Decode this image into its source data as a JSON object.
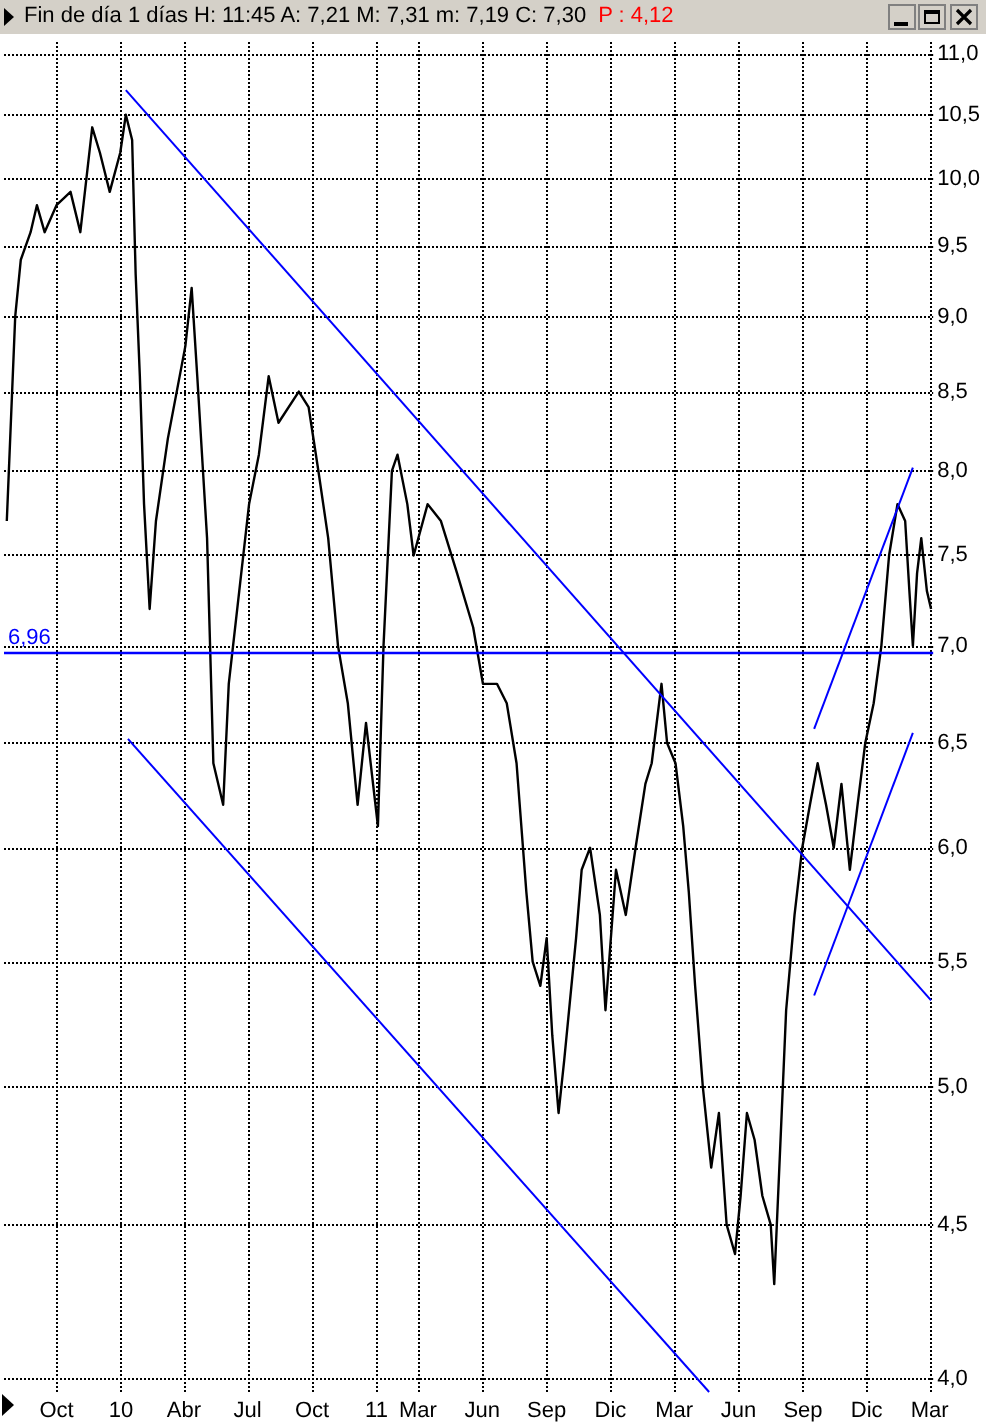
{
  "chart_data": {
    "type": "line",
    "title": "Fin de día 1 días  H: 11:45  A: 7,21  M: 7,31  m: 7,19  C: 7,30",
    "annotations": [
      "P : 4,12"
    ],
    "x": [
      "2009-07-22",
      "2009-08-03",
      "2009-08-11",
      "2009-08-25",
      "2009-09-03",
      "2009-09-14",
      "2009-10-01",
      "2009-10-21",
      "2009-11-04",
      "2009-11-21",
      "2009-12-02",
      "2009-12-16",
      "2009-12-31",
      "2010-01-08",
      "2010-01-17",
      "2010-01-22",
      "2010-01-28",
      "2010-02-03",
      "2010-02-11",
      "2010-02-20",
      "2010-03-09",
      "2010-04-03",
      "2010-04-12",
      "2010-04-20",
      "2010-05-04",
      "2010-05-13",
      "2010-05-27",
      "2010-06-04",
      "2010-06-19",
      "2010-07-03",
      "2010-07-17",
      "2010-07-31",
      "2010-08-14",
      "2010-09-12",
      "2010-09-26",
      "2010-10-10",
      "2010-10-24",
      "2010-11-07",
      "2010-11-21",
      "2010-12-05",
      "2010-12-17",
      "2011-01-03",
      "2011-01-11",
      "2011-01-23",
      "2011-01-31",
      "2011-02-14",
      "2011-02-23",
      "2011-03-15",
      "2011-04-03",
      "2011-04-26",
      "2011-05-19",
      "2011-06-02",
      "2011-06-22",
      "2011-07-06",
      "2011-07-20",
      "2011-08-03",
      "2011-08-12",
      "2011-08-23",
      "2011-09-01",
      "2011-09-09",
      "2011-09-18",
      "2011-09-26",
      "2011-10-13",
      "2011-10-21",
      "2011-11-02",
      "2011-11-16",
      "2011-11-24",
      "2011-12-09",
      "2011-12-23",
      "2012-01-06",
      "2012-01-20",
      "2012-01-29",
      "2012-02-12",
      "2012-02-20",
      "2012-03-03",
      "2012-03-14",
      "2012-03-22",
      "2012-03-31",
      "2012-04-11",
      "2012-04-23",
      "2012-05-04",
      "2012-05-15",
      "2012-05-27",
      "2012-06-04",
      "2012-06-13",
      "2012-06-24",
      "2012-07-05",
      "2012-07-17",
      "2012-07-22",
      "2012-07-31",
      "2012-08-08",
      "2012-08-20",
      "2012-08-31",
      "2012-09-11",
      "2012-09-22",
      "2012-10-04",
      "2012-10-15",
      "2012-10-26",
      "2012-11-07",
      "2012-11-18",
      "2012-11-29",
      "2012-12-11",
      "2012-12-22",
      "2013-01-02",
      "2013-01-14",
      "2013-01-25",
      "2013-01-31",
      "2013-02-05",
      "2013-02-11",
      "2013-02-17",
      "2013-02-25",
      "2013-03-03"
    ],
    "series": [
      {
        "color": "#000000",
        "values": [
          7.7,
          9.0,
          9.4,
          9.6,
          9.8,
          9.6,
          9.8,
          9.9,
          9.6,
          10.4,
          10.2,
          9.9,
          10.2,
          10.5,
          10.3,
          9.3,
          8.6,
          7.8,
          7.2,
          7.7,
          8.2,
          8.8,
          9.2,
          8.6,
          7.6,
          6.4,
          6.2,
          6.8,
          7.3,
          7.8,
          8.1,
          8.6,
          8.3,
          8.5,
          8.4,
          8.0,
          7.6,
          7.0,
          6.7,
          6.2,
          6.6,
          6.1,
          7.0,
          8.0,
          8.1,
          7.8,
          7.5,
          7.8,
          7.7,
          7.4,
          7.1,
          6.8,
          6.8,
          6.7,
          6.4,
          5.8,
          5.5,
          5.4,
          5.6,
          5.2,
          4.9,
          5.1,
          5.6,
          5.9,
          6.0,
          5.7,
          5.3,
          5.9,
          5.7,
          6.0,
          6.3,
          6.4,
          6.8,
          6.5,
          6.4,
          6.1,
          5.8,
          5.4,
          5.0,
          4.7,
          4.9,
          4.5,
          4.4,
          4.6,
          4.9,
          4.8,
          4.6,
          4.5,
          4.3,
          4.8,
          5.3,
          5.7,
          6.0,
          6.2,
          6.4,
          6.2,
          6.0,
          6.3,
          5.9,
          6.2,
          6.5,
          6.7,
          7.0,
          7.5,
          7.8,
          7.7,
          7.3,
          7.0,
          7.4,
          7.6,
          7.3,
          7.2
        ]
      },
      {
        "color": "#0000ff",
        "x": [
          "2010-01-08",
          "2013-03-03"
        ],
        "values": [
          10.7,
          5.34
        ]
      },
      {
        "color": "#0000ff",
        "x": [
          "2010-01-11",
          "2012-04-20"
        ],
        "values": [
          6.52,
          3.96
        ]
      },
      {
        "color": "#0000ff",
        "x": [
          "2012-09-17",
          "2013-02-05"
        ],
        "values": [
          6.57,
          8.02
        ]
      },
      {
        "color": "#0000ff",
        "x": [
          "2012-09-17",
          "2013-02-05"
        ],
        "values": [
          5.36,
          6.55
        ]
      }
    ],
    "ref_lines": [
      {
        "axis": "y",
        "value": 6.96,
        "label": "6,96",
        "color": "#0000ff"
      }
    ],
    "log": "y",
    "ylim": [
      3.96,
      11.1
    ],
    "yticks": [
      {
        "value": 4,
        "label": "4,0"
      },
      {
        "value": 4.5,
        "label": "4,5"
      },
      {
        "value": 5,
        "label": "5,0"
      },
      {
        "value": 5.5,
        "label": "5,5"
      },
      {
        "value": 6,
        "label": "6,0"
      },
      {
        "value": 6.5,
        "label": "6,5"
      },
      {
        "value": 7,
        "label": "7,0"
      },
      {
        "value": 7.5,
        "label": "7,5"
      },
      {
        "value": 8,
        "label": "8,0"
      },
      {
        "value": 8.5,
        "label": "8,5"
      },
      {
        "value": 9,
        "label": "9,0"
      },
      {
        "value": 9.5,
        "label": "9,5"
      },
      {
        "value": 10,
        "label": "10,0"
      },
      {
        "value": 10.5,
        "label": "10,5"
      },
      {
        "value": 11,
        "label": "11,0"
      }
    ],
    "xlim": [
      "2009-07-18",
      "2013-03-06"
    ],
    "xticks": [
      {
        "value": "2009-10-01",
        "label": "Oct"
      },
      {
        "value": "2010-01-01",
        "label": "10"
      },
      {
        "value": "2010-04-01",
        "label": "Abr"
      },
      {
        "value": "2010-07-01",
        "label": "Jul"
      },
      {
        "value": "2010-10-01",
        "label": "Oct"
      },
      {
        "value": "2011-01-01",
        "label": "11"
      },
      {
        "value": "2011-03-01",
        "label": "Mar"
      },
      {
        "value": "2011-06-01",
        "label": "Jun"
      },
      {
        "value": "2011-09-01",
        "label": "Sep"
      },
      {
        "value": "2011-12-01",
        "label": "Dic"
      },
      {
        "value": "2012-03-01",
        "label": "Mar"
      },
      {
        "value": "2012-06-01",
        "label": "Jun"
      },
      {
        "value": "2012-09-01",
        "label": "Sep"
      },
      {
        "value": "2012-12-01",
        "label": "Dic"
      },
      {
        "value": "2013-03-01",
        "label": "Mar"
      }
    ],
    "grid": true,
    "marker": "none",
    "line_style": "solid"
  }
}
